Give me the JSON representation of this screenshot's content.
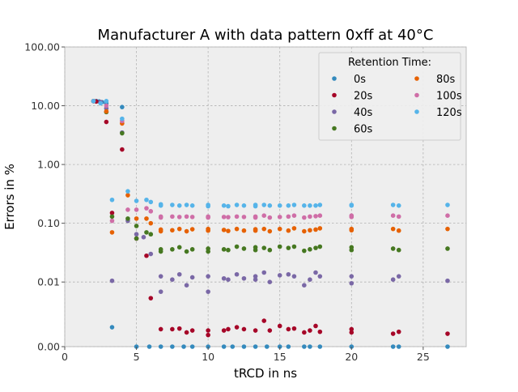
{
  "chart_data": {
    "type": "scatter",
    "title": "Manufacturer A with data pattern 0xff at 40°C",
    "xlabel": "tRCD in ns",
    "ylabel": "Errors in %",
    "xlim": [
      0,
      28
    ],
    "ylim": [
      0,
      100
    ],
    "y_scale": "symlog",
    "x_ticks": [
      0,
      5,
      10,
      15,
      20,
      25
    ],
    "y_ticks": [
      {
        "v": 0,
        "label": "0.00"
      },
      {
        "v": 0.01,
        "label": "0.01"
      },
      {
        "v": 0.1,
        "label": "0.10"
      },
      {
        "v": 1,
        "label": "1.00"
      },
      {
        "v": 10,
        "label": "10.00"
      },
      {
        "v": 100,
        "label": "100.00"
      }
    ],
    "grid": true,
    "legend": {
      "title": "Retention Time:",
      "placement": "top-right",
      "columns": 2
    },
    "series": [
      {
        "name": "0s",
        "color": "#348ABD",
        "points": [
          [
            2.0,
            12.0
          ],
          [
            2.2,
            12.0
          ],
          [
            2.4,
            11.8
          ],
          [
            2.6,
            11.5
          ],
          [
            2.9,
            11.0
          ],
          [
            3.3,
            0.003
          ],
          [
            4.0,
            9.5
          ],
          [
            5.0,
            0
          ],
          [
            5.9,
            0
          ],
          [
            6.7,
            0
          ],
          [
            7.5,
            0
          ],
          [
            8.3,
            0
          ],
          [
            8.9,
            0
          ],
          [
            10.0,
            0
          ],
          [
            11.1,
            0
          ],
          [
            11.7,
            0
          ],
          [
            12.5,
            0
          ],
          [
            13.3,
            0
          ],
          [
            14.1,
            0
          ],
          [
            15.0,
            0
          ],
          [
            15.6,
            0
          ],
          [
            16.7,
            0
          ],
          [
            17.1,
            0
          ],
          [
            17.8,
            0
          ],
          [
            20.0,
            0
          ],
          [
            22.9,
            0
          ],
          [
            23.3,
            0
          ],
          [
            26.7,
            0
          ]
        ]
      },
      {
        "name": "20s",
        "color": "#A60628",
        "points": [
          [
            2.0,
            12.0
          ],
          [
            2.2,
            11.8
          ],
          [
            2.5,
            11.5
          ],
          [
            2.9,
            5.3
          ],
          [
            3.3,
            0.15
          ],
          [
            4.0,
            1.8
          ],
          [
            5.0,
            0.055
          ],
          [
            5.7,
            0.028
          ],
          [
            6.0,
            0.0075
          ],
          [
            6.7,
            0.0027
          ],
          [
            7.5,
            0.0027
          ],
          [
            8.0,
            0.0028
          ],
          [
            8.5,
            0.0022
          ],
          [
            8.9,
            0.0025
          ],
          [
            10.0,
            0.0025
          ],
          [
            10.0,
            0.0018
          ],
          [
            11.1,
            0.0025
          ],
          [
            11.4,
            0.0027
          ],
          [
            12.0,
            0.003
          ],
          [
            12.5,
            0.0027
          ],
          [
            13.3,
            0.0025
          ],
          [
            13.9,
            0.004
          ],
          [
            14.3,
            0.0025
          ],
          [
            15.0,
            0.0032
          ],
          [
            15.6,
            0.0027
          ],
          [
            16.0,
            0.0028
          ],
          [
            16.7,
            0.0022
          ],
          [
            17.1,
            0.0025
          ],
          [
            17.5,
            0.0032
          ],
          [
            17.8,
            0.0023
          ],
          [
            20.0,
            0.0027
          ],
          [
            20.0,
            0.0022
          ],
          [
            22.9,
            0.002
          ],
          [
            23.3,
            0.0023
          ],
          [
            26.7,
            0.002
          ]
        ]
      },
      {
        "name": "40s",
        "color": "#7A68A6",
        "points": [
          [
            2.0,
            12.0
          ],
          [
            2.5,
            11.5
          ],
          [
            2.9,
            9.0
          ],
          [
            3.3,
            0.0105
          ],
          [
            4.0,
            3.5
          ],
          [
            4.4,
            0.11
          ],
          [
            5.0,
            0.065
          ],
          [
            5.5,
            0.058
          ],
          [
            6.0,
            0.03
          ],
          [
            6.7,
            0.0085
          ],
          [
            6.7,
            0.0125
          ],
          [
            7.5,
            0.011
          ],
          [
            8.0,
            0.0135
          ],
          [
            8.5,
            0.0095
          ],
          [
            8.9,
            0.012
          ],
          [
            10.0,
            0.0085
          ],
          [
            10.0,
            0.0125
          ],
          [
            11.1,
            0.0115
          ],
          [
            11.4,
            0.011
          ],
          [
            12.0,
            0.0135
          ],
          [
            12.5,
            0.0115
          ],
          [
            13.3,
            0.011
          ],
          [
            13.3,
            0.0125
          ],
          [
            13.9,
            0.0145
          ],
          [
            14.3,
            0.01
          ],
          [
            15.0,
            0.013
          ],
          [
            15.6,
            0.0135
          ],
          [
            16.0,
            0.0125
          ],
          [
            16.7,
            0.0095
          ],
          [
            17.1,
            0.011
          ],
          [
            17.5,
            0.0145
          ],
          [
            17.8,
            0.0125
          ],
          [
            20.0,
            0.0098
          ],
          [
            20.0,
            0.0125
          ],
          [
            22.9,
            0.011
          ],
          [
            23.3,
            0.0125
          ],
          [
            26.7,
            0.0105
          ]
        ]
      },
      {
        "name": "60s",
        "color": "#467821",
        "points": [
          [
            2.0,
            12.0
          ],
          [
            2.9,
            7.8
          ],
          [
            3.3,
            0.13
          ],
          [
            4.0,
            3.4
          ],
          [
            4.4,
            0.12
          ],
          [
            5.0,
            0.055
          ],
          [
            5.0,
            0.09
          ],
          [
            5.7,
            0.07
          ],
          [
            6.0,
            0.065
          ],
          [
            6.7,
            0.033
          ],
          [
            6.7,
            0.036
          ],
          [
            7.5,
            0.036
          ],
          [
            8.0,
            0.039
          ],
          [
            8.5,
            0.033
          ],
          [
            8.9,
            0.036
          ],
          [
            10.0,
            0.033
          ],
          [
            10.0,
            0.037
          ],
          [
            11.1,
            0.036
          ],
          [
            11.4,
            0.035
          ],
          [
            12.0,
            0.04
          ],
          [
            12.5,
            0.037
          ],
          [
            13.3,
            0.035
          ],
          [
            13.3,
            0.039
          ],
          [
            13.9,
            0.038
          ],
          [
            14.3,
            0.035
          ],
          [
            15.0,
            0.04
          ],
          [
            15.6,
            0.038
          ],
          [
            16.0,
            0.04
          ],
          [
            16.7,
            0.034
          ],
          [
            17.1,
            0.036
          ],
          [
            17.5,
            0.038
          ],
          [
            17.8,
            0.04
          ],
          [
            20.0,
            0.035
          ],
          [
            20.0,
            0.039
          ],
          [
            22.9,
            0.037
          ],
          [
            23.3,
            0.035
          ],
          [
            26.7,
            0.037
          ]
        ]
      },
      {
        "name": "80s",
        "color": "#E66101",
        "points": [
          [
            2.0,
            12.0
          ],
          [
            2.9,
            8.0
          ],
          [
            3.3,
            0.07
          ],
          [
            4.0,
            5.0
          ],
          [
            4.4,
            0.3
          ],
          [
            5.0,
            0.12
          ],
          [
            5.7,
            0.12
          ],
          [
            6.0,
            0.1
          ],
          [
            6.7,
            0.073
          ],
          [
            6.7,
            0.078
          ],
          [
            7.5,
            0.076
          ],
          [
            8.0,
            0.08
          ],
          [
            8.5,
            0.073
          ],
          [
            8.9,
            0.079
          ],
          [
            10.0,
            0.075
          ],
          [
            10.0,
            0.08
          ],
          [
            11.1,
            0.077
          ],
          [
            11.4,
            0.074
          ],
          [
            12.0,
            0.08
          ],
          [
            12.5,
            0.075
          ],
          [
            13.3,
            0.075
          ],
          [
            13.3,
            0.079
          ],
          [
            13.9,
            0.08
          ],
          [
            14.3,
            0.073
          ],
          [
            15.0,
            0.08
          ],
          [
            15.6,
            0.075
          ],
          [
            16.0,
            0.082
          ],
          [
            16.7,
            0.073
          ],
          [
            17.1,
            0.076
          ],
          [
            17.5,
            0.078
          ],
          [
            17.8,
            0.082
          ],
          [
            20.0,
            0.076
          ],
          [
            20.0,
            0.08
          ],
          [
            22.9,
            0.08
          ],
          [
            23.3,
            0.075
          ],
          [
            26.7,
            0.08
          ]
        ]
      },
      {
        "name": "100s",
        "color": "#CF6EA7",
        "points": [
          [
            2.0,
            12.0
          ],
          [
            2.9,
            10.0
          ],
          [
            3.3,
            0.11
          ],
          [
            4.0,
            5.5
          ],
          [
            4.4,
            0.17
          ],
          [
            5.0,
            0.17
          ],
          [
            5.7,
            0.18
          ],
          [
            6.0,
            0.16
          ],
          [
            6.7,
            0.125
          ],
          [
            6.7,
            0.13
          ],
          [
            7.5,
            0.13
          ],
          [
            8.0,
            0.128
          ],
          [
            8.5,
            0.13
          ],
          [
            8.9,
            0.128
          ],
          [
            10.0,
            0.125
          ],
          [
            10.0,
            0.13
          ],
          [
            11.1,
            0.128
          ],
          [
            11.4,
            0.127
          ],
          [
            12.0,
            0.13
          ],
          [
            12.5,
            0.128
          ],
          [
            13.3,
            0.125
          ],
          [
            13.3,
            0.13
          ],
          [
            13.9,
            0.135
          ],
          [
            14.3,
            0.125
          ],
          [
            15.0,
            0.128
          ],
          [
            15.6,
            0.13
          ],
          [
            16.0,
            0.135
          ],
          [
            16.7,
            0.125
          ],
          [
            17.1,
            0.13
          ],
          [
            17.5,
            0.132
          ],
          [
            17.8,
            0.135
          ],
          [
            20.0,
            0.128
          ],
          [
            20.0,
            0.135
          ],
          [
            22.9,
            0.135
          ],
          [
            23.3,
            0.13
          ],
          [
            26.7,
            0.135
          ]
        ]
      },
      {
        "name": "120s",
        "color": "#56B4E9",
        "points": [
          [
            2.0,
            12.0
          ],
          [
            2.5,
            11.0
          ],
          [
            2.9,
            12.0
          ],
          [
            3.3,
            0.25
          ],
          [
            4.0,
            6.0
          ],
          [
            4.4,
            0.35
          ],
          [
            5.0,
            0.24
          ],
          [
            5.7,
            0.25
          ],
          [
            6.0,
            0.23
          ],
          [
            6.7,
            0.2
          ],
          [
            6.7,
            0.21
          ],
          [
            7.5,
            0.205
          ],
          [
            8.0,
            0.2
          ],
          [
            8.5,
            0.205
          ],
          [
            8.9,
            0.2
          ],
          [
            10.0,
            0.195
          ],
          [
            10.0,
            0.205
          ],
          [
            11.1,
            0.2
          ],
          [
            11.4,
            0.195
          ],
          [
            12.0,
            0.205
          ],
          [
            12.5,
            0.2
          ],
          [
            13.3,
            0.195
          ],
          [
            13.3,
            0.205
          ],
          [
            13.9,
            0.205
          ],
          [
            14.3,
            0.2
          ],
          [
            15.0,
            0.2
          ],
          [
            15.6,
            0.2
          ],
          [
            16.0,
            0.205
          ],
          [
            16.7,
            0.2
          ],
          [
            17.1,
            0.2
          ],
          [
            17.5,
            0.2
          ],
          [
            17.8,
            0.205
          ],
          [
            20.0,
            0.2
          ],
          [
            20.0,
            0.205
          ],
          [
            22.9,
            0.205
          ],
          [
            23.3,
            0.2
          ],
          [
            26.7,
            0.205
          ]
        ]
      }
    ]
  }
}
